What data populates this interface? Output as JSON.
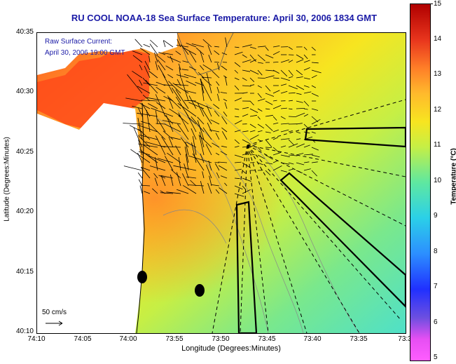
{
  "title": "RU COOL  NOAA-18  Sea Surface Temperature:  April 30, 2006 1834 GMT",
  "current_legend": {
    "line1": "Raw Surface Current:",
    "line2": "April 30, 2006 19:00 GMT"
  },
  "scale_label": "50 cm/s",
  "axes": {
    "xlabel": "Longitude (Degrees:Minutes)",
    "ylabel": "Latitude (Degrees:Minutes)",
    "xticks": [
      "74:10",
      "74:05",
      "74:00",
      "73:55",
      "73:50",
      "73:45",
      "73:40",
      "73:35",
      "73:3"
    ],
    "yticks": [
      "40:35",
      "40:30",
      "40:25",
      "40:20",
      "40:15",
      "40:10"
    ]
  },
  "colorbar": {
    "title": "Temperature (°C)",
    "ticks": [
      "15",
      "14",
      "13",
      "12",
      "11",
      "10",
      "9",
      "8",
      "7",
      "6",
      "5"
    ],
    "range": [
      5,
      15
    ]
  },
  "colors": {
    "title": "#1a1aa6",
    "land": "#ffffff",
    "warm": "#ff4a1a",
    "cool": "#5fe8c0"
  }
}
